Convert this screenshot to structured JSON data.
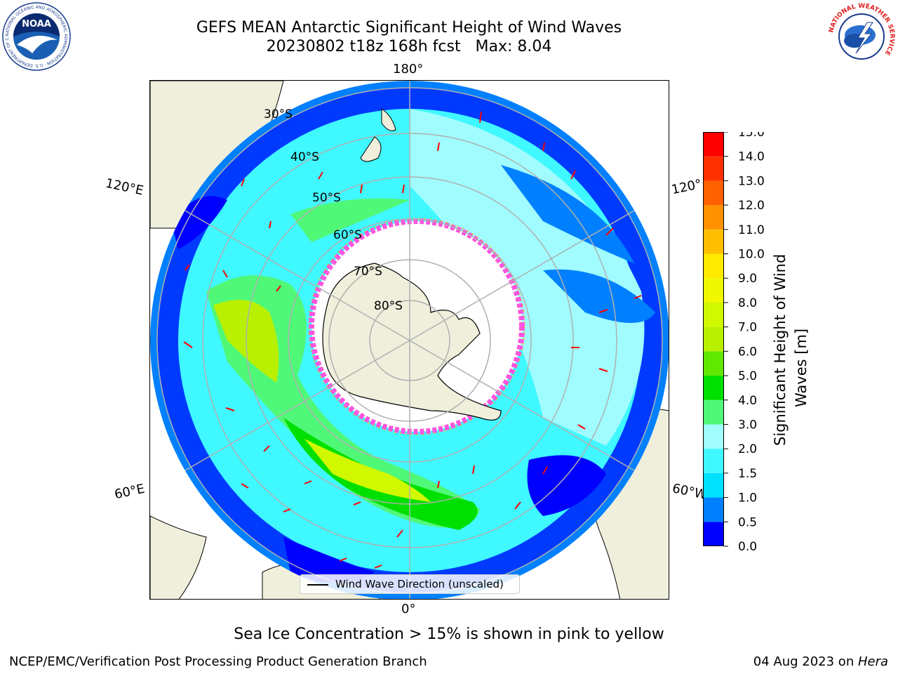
{
  "header": {
    "title_line1": "GEFS MEAN Antarctic Significant Height of Wind Waves",
    "title_line2": "20230802 t18z 168h fcst   Max: 8.04"
  },
  "logos": {
    "left_name": "NOAA",
    "left_ring_text": "NATIONAL OCEANIC AND ATMOSPHERIC ADMINISTRATION · U.S. DEPARTMENT OF COMMERCE",
    "right_ring_text": "NATIONAL WEATHER SERVICE"
  },
  "map": {
    "lon_labels": {
      "top": "180°",
      "bottom": "0°",
      "left_upper": "120°E",
      "left_lower": "60°E",
      "right_upper": "120°",
      "right_lower": "60°W"
    },
    "lat_labels": [
      "30°S",
      "40°S",
      "50°S",
      "60°S",
      "70°S",
      "80°S"
    ],
    "legend_label": "Wind Wave Direction (unscaled)",
    "colors": {
      "land": "#efefdc",
      "sea_ice": "#ffffff",
      "ice_edge": "#ff55dd",
      "arrow": "#ff0000",
      "grid": "#b0b0b0"
    }
  },
  "colorbar": {
    "label": "Significant Height of Wind Waves [m]",
    "ticks": [
      "0.0",
      "0.5",
      "1.0",
      "1.5",
      "2.0",
      "3.0",
      "4.0",
      "5.0",
      "6.0",
      "7.0",
      "8.0",
      "9.0",
      "10.0",
      "11.0",
      "12.0",
      "13.0",
      "14.0",
      "15.0"
    ],
    "colors": [
      "#0000ff",
      "#0080ff",
      "#00e0ff",
      "#40f8ff",
      "#a0fcff",
      "#50f878",
      "#00e000",
      "#60e800",
      "#b8f000",
      "#d0f800",
      "#f0f800",
      "#ffea00",
      "#ffbf00",
      "#ff9000",
      "#ff6000",
      "#ff3000",
      "#ff0000"
    ]
  },
  "footer": {
    "caption": "Sea Ice Concentration > 15% is shown in pink to yellow",
    "left": "NCEP/EMC/Verification Post Processing Product Generation Branch",
    "right_prefix": "04 Aug 2023 on ",
    "right_machine": "Hera"
  }
}
